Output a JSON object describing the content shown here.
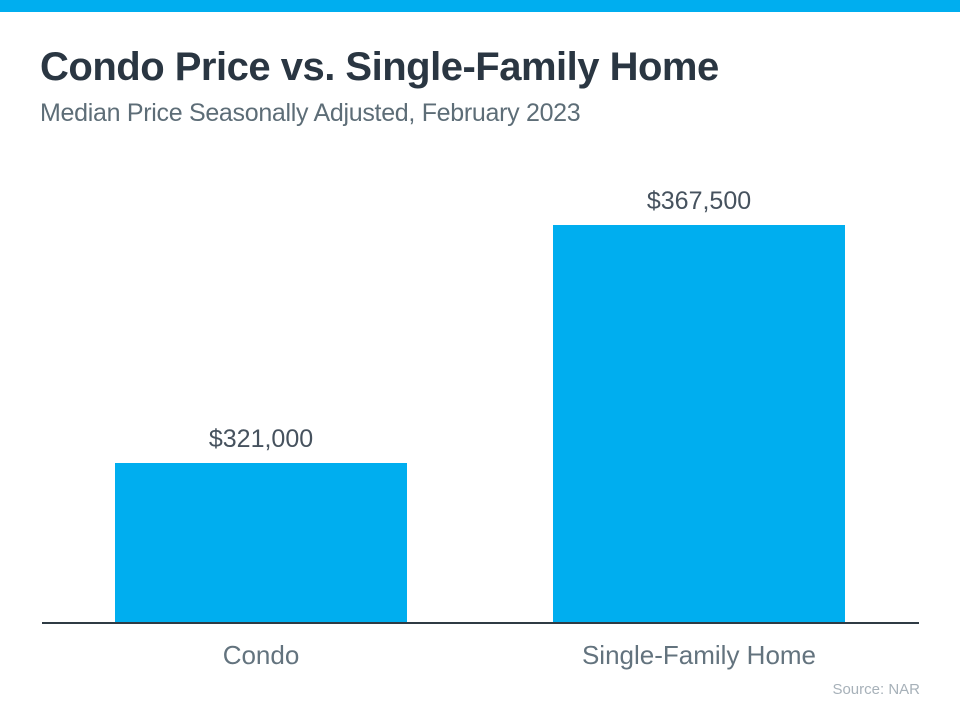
{
  "header": {
    "title": "Condo Price vs. Single-Family Home",
    "subtitle": "Median Price Seasonally Adjusted, February 2023"
  },
  "footer": {
    "source": "Source: NAR"
  },
  "colors": {
    "accent": "#00AEEF",
    "bar": "#00AEEF",
    "title_text": "#2A3642",
    "subtitle_text": "#5D6D77",
    "value_text": "#46525E",
    "category_text": "#63737E",
    "axis_line": "#2F3B44",
    "source_text": "#A7B1B9"
  },
  "chart_data": {
    "type": "bar",
    "title": "Condo Price vs. Single-Family Home",
    "subtitle": "Median Price Seasonally Adjusted, February 2023",
    "categories": [
      "Condo",
      "Single-Family Home"
    ],
    "values": [
      321000,
      367500
    ],
    "value_labels": [
      "$321,000",
      "$367,500"
    ],
    "xlabel": "",
    "ylabel": "",
    "ylim": [
      290000,
      367500
    ],
    "grid": false,
    "legend": false,
    "baseline_axis": "x",
    "source": "Source: NAR"
  }
}
